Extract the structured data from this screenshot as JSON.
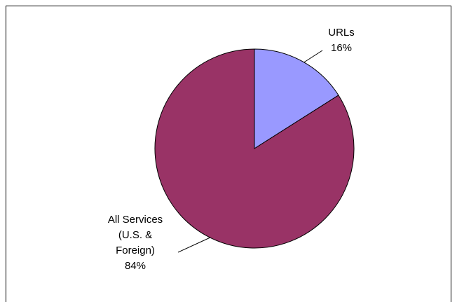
{
  "chart_data": {
    "type": "pie",
    "categories": [
      "URLs",
      "All Services (U.S. & Foreign)"
    ],
    "values": [
      16,
      84
    ],
    "value_labels": [
      "16%",
      "84%"
    ],
    "colors": [
      "#9999ff",
      "#993366"
    ]
  }
}
